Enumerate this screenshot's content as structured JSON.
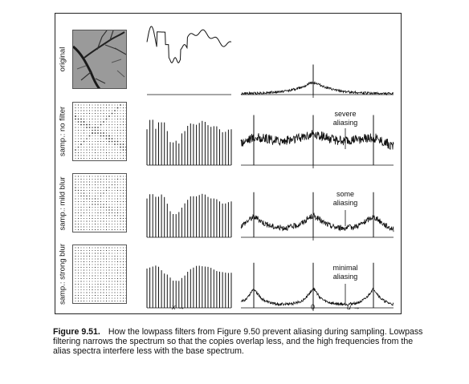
{
  "rows": [
    {
      "label": "original",
      "note": ""
    },
    {
      "label": "samp.: no filter",
      "note_l1": "severe",
      "note_l2": "aliasing"
    },
    {
      "label": "samp.: mild blur",
      "note_l1": "some",
      "note_l2": "aliasing"
    },
    {
      "label": "samp.: strong blur",
      "note_l1": "minimal",
      "note_l2": "aliasing"
    }
  ],
  "axes": {
    "x_label": "x",
    "u_label": "u",
    "zero_label": "0"
  },
  "caption": {
    "figure_id": "Figure 9.51.",
    "text": "How the lowpass filters from Figure 9.50 prevent aliasing during sampling. Lowpass filtering narrows the spectrum so that the copies overlap less, and the high frequencies from the alias spectra interfere less with the base spectrum."
  }
}
